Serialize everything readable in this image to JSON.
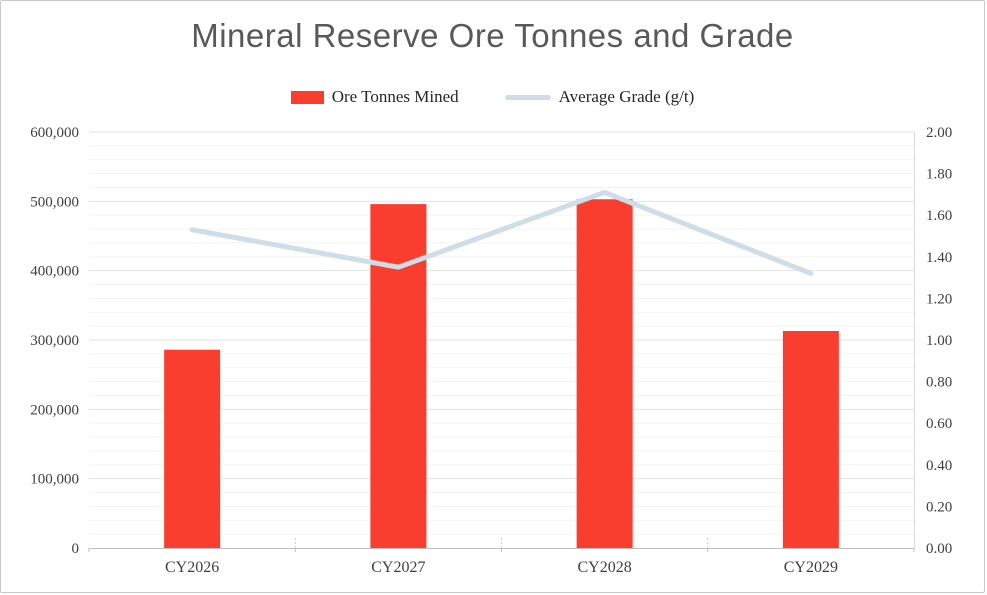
{
  "chart_data": {
    "type": "combo",
    "title": "Mineral Reserve Ore Tonnes and Grade",
    "categories": [
      "CY2026",
      "CY2027",
      "CY2028",
      "CY2029"
    ],
    "series": [
      {
        "name": "Ore Tonnes Mined",
        "type": "bar",
        "axis": "left",
        "color": "#f93e30",
        "values": [
          286000,
          496000,
          503000,
          313000
        ]
      },
      {
        "name": "Average Grade (g/t)",
        "type": "line",
        "axis": "right",
        "color": "#cfdde9",
        "values": [
          1.53,
          1.35,
          1.71,
          1.32
        ]
      }
    ],
    "left_axis": {
      "min": 0,
      "max": 600000,
      "major_step": 100000,
      "minor_step": 20000,
      "tick_labels": [
        "0",
        "100,000",
        "200,000",
        "300,000",
        "400,000",
        "500,000",
        "600,000"
      ]
    },
    "right_axis": {
      "min": 0,
      "max": 2,
      "major_step": 0.2,
      "tick_labels": [
        "0.00",
        "0.20",
        "0.40",
        "0.60",
        "0.80",
        "1.00",
        "1.20",
        "1.40",
        "1.60",
        "1.80",
        "2.00"
      ]
    },
    "grid": {
      "major": true,
      "minor": true,
      "legend_position": "top"
    },
    "colors": {
      "grid_minor": "#f3f3f3",
      "grid_major": "#e2e2e2",
      "axis_line": "#bfbfbf",
      "right_axis_line": "#d9d9d9"
    }
  }
}
